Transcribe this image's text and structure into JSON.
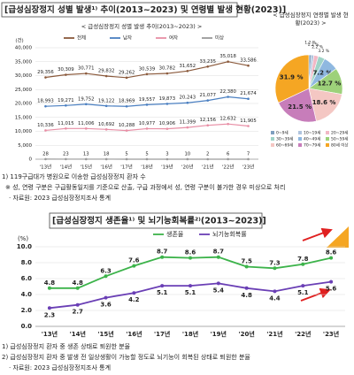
{
  "section1_title": "[급성심장정지 성별 발생¹⁾ 추이(2013~2023) 및 연령별 발생 현황(2023)]",
  "section1_notes": [
    "1) 119구급대가 병원으로 이송한 급성심장정지 환자 수",
    "※ 성, 연령 구분은 구급활동일지를 기준으로 산출, 구급 과정에서 성, 연령 구분이 불가한 경우 미상으로 처리",
    "· 자료원: 2023 급성심장정지조사 통계"
  ],
  "section2_title": "[급성심장정지 생존율¹⁾ 및 뇌기능회복률²⁾(2013~2023)]",
  "section2_notes": [
    "1) 급성심장정지 환자 중 생존 상태로 퇴원한 분율",
    "2) 급성심장정지 환자 중 발생 전 일상생활이 가능할 정도로 뇌기능이 회복된 상태로 퇴원한 분율",
    "· 자료원: 2023 급성심장정지조사 통계"
  ],
  "chart_data": [
    {
      "type": "line",
      "title": "< 급성심장정지 성별 발생 추이(2013~2023) >",
      "y_label": "(건)",
      "categories": [
        "'13년",
        "'14년",
        "'15년",
        "'16년",
        "'17년",
        "'18년",
        "'19년",
        "'20년",
        "'21년",
        "'22년",
        "'23년"
      ],
      "series": [
        {
          "name": "전체",
          "color": "#8b5a3c",
          "values": [
            29356,
            30309,
            30771,
            29832,
            29262,
            30539,
            30782,
            31652,
            33235,
            35018,
            33586
          ],
          "value_labels": [
            "29,356",
            "30,309",
            "30,771",
            "29,832",
            "29,262",
            "30,539",
            "30,782",
            "31,652",
            "33,235",
            "35,018",
            "33,586"
          ]
        },
        {
          "name": "남자",
          "color": "#4a7fc1",
          "values": [
            18993,
            19271,
            19752,
            19122,
            18969,
            19557,
            19873,
            20243,
            21077,
            22380,
            21674
          ],
          "value_labels": [
            "18,993",
            "19,271",
            "19,752",
            "19,122",
            "18,969",
            "19,557",
            "19,873",
            "20,243",
            "21,077",
            "22,380",
            "21,674"
          ]
        },
        {
          "name": "여자",
          "color": "#e88fa6",
          "values": [
            10336,
            11015,
            11006,
            10692,
            10288,
            10977,
            10906,
            11399,
            12156,
            12632,
            11905
          ],
          "value_labels": [
            "10,336",
            "11,015",
            "11,006",
            "10,692",
            "10,288",
            "10,977",
            "10,906",
            "11,399",
            "12,156",
            "12,632",
            "11,905"
          ]
        },
        {
          "name": "미상",
          "color": "#9a9a9a",
          "values": [
            28,
            23,
            13,
            18,
            5,
            5,
            3,
            10,
            2,
            6,
            7
          ]
        }
      ],
      "ylim": [
        0,
        40000
      ],
      "yticks": [
        0,
        {
          "value": 5000,
          "label": "5,000"
        },
        {
          "value": 10000,
          "label": "10,000"
        },
        {
          "value": 15000,
          "label": "15,000"
        },
        {
          "value": 20000,
          "label": "20,000"
        },
        {
          "value": 25000,
          "label": "25,000"
        },
        {
          "value": 30000,
          "label": "30,000"
        },
        {
          "value": 35000,
          "label": "35,000"
        },
        {
          "value": 40000,
          "label": "40,000"
        }
      ],
      "grid": true
    },
    {
      "type": "pie",
      "title": "< 급성심장정지 연령별 발생 현황(2023) >",
      "categories": [
        "0~9세",
        "10~19세",
        "20~29세",
        "30~39세",
        "40~49세",
        "50~59세",
        "60~69세",
        "70~79세",
        "80세 이상"
      ],
      "values": [
        1.2,
        1.2,
        2.2,
        3.2,
        7.2,
        12.7,
        18.6,
        21.5,
        31.9
      ],
      "value_labels": [
        "1.2 %",
        "1.2 %",
        "2.2 %",
        "3.2 %",
        "7.2 %",
        "12.7 %",
        "18.6 %",
        "21.5 %",
        "31.9 %"
      ],
      "colors": [
        "#7f9fbf",
        "#b0c4de",
        "#f2b8c6",
        "#9fd3c7",
        "#8fb8e0",
        "#9dd17a",
        "#f4c7c3",
        "#c77dba",
        "#f5a623"
      ]
    },
    {
      "type": "line",
      "y_label": "(%)",
      "categories": [
        "'13년",
        "'14년",
        "'15년",
        "'16년",
        "'17년",
        "'18년",
        "'19년",
        "'20년",
        "'21년",
        "'22년",
        "'23년"
      ],
      "series": [
        {
          "name": "생존율",
          "color": "#3cb34a",
          "values": [
            4.8,
            4.8,
            6.3,
            7.6,
            8.7,
            8.6,
            8.7,
            7.5,
            7.3,
            7.8,
            8.6
          ]
        },
        {
          "name": "뇌기능회복률",
          "color": "#6a3fb5",
          "values": [
            2.3,
            2.7,
            3.6,
            4.2,
            5.1,
            5.1,
            5.4,
            4.8,
            4.4,
            5.1,
            5.6
          ]
        }
      ],
      "ylim": [
        0,
        10
      ],
      "yticks": [
        {
          "value": 0,
          "label": "0.0"
        },
        {
          "value": 2,
          "label": "2.0"
        },
        {
          "value": 4,
          "label": "4.0"
        },
        {
          "value": 6,
          "label": "6.0"
        },
        {
          "value": 8,
          "label": "8.0"
        },
        {
          "value": 10,
          "label": "10.0"
        }
      ],
      "grid": true
    }
  ]
}
